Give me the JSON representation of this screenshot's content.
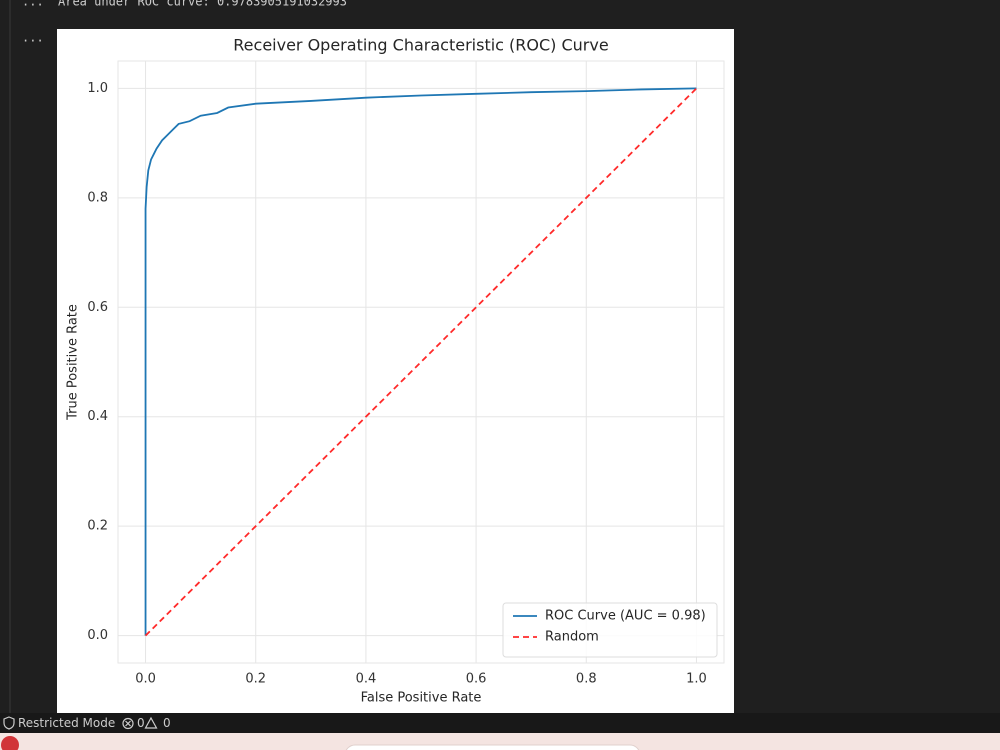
{
  "output_text": "Area under ROC curve: 0.9783905191032993",
  "cell_prompts": [
    "...",
    "..."
  ],
  "status_bar": {
    "mode": "Restricted Mode",
    "errors": "0",
    "warnings": "0"
  },
  "chart_data": {
    "type": "line",
    "title": "Receiver Operating Characteristic (ROC) Curve",
    "x_label": "False Positive Rate",
    "y_label": "True Positive Rate",
    "xlim": [
      -0.05,
      1.05
    ],
    "ylim": [
      -0.05,
      1.05
    ],
    "xticks": [
      {
        "value": 0,
        "label": "0.0"
      },
      0.2,
      0.4,
      0.6,
      0.8,
      {
        "value": 1,
        "label": "1.0"
      }
    ],
    "yticks": [
      {
        "value": 0,
        "label": "0.0"
      },
      0.2,
      0.4,
      0.6,
      0.8,
      {
        "value": 1,
        "label": "1.0"
      }
    ],
    "grid": true,
    "legend": "lower right",
    "series": [
      {
        "name": "ROC Curve (AUC = 0.98)",
        "color": "#1f77b4",
        "linestyle": "solid",
        "x": [
          0,
          0,
          0.002,
          0.005,
          0.01,
          0.015,
          0.02,
          0.03,
          0.04,
          0.05,
          0.06,
          0.08,
          0.1,
          0.13,
          0.15,
          0.2,
          0.3,
          0.4,
          0.5,
          0.6,
          0.7,
          0.8,
          0.9,
          1
        ],
        "values": [
          0,
          0.78,
          0.82,
          0.85,
          0.87,
          0.88,
          0.89,
          0.905,
          0.915,
          0.925,
          0.935,
          0.94,
          0.95,
          0.955,
          0.965,
          0.972,
          0.977,
          0.983,
          0.987,
          0.99,
          0.993,
          0.995,
          0.998,
          1
        ]
      },
      {
        "name": "Random",
        "color": "#ff2a2a",
        "linestyle": "dashed",
        "x": [
          0,
          1
        ],
        "values": [
          0,
          1
        ]
      }
    ]
  }
}
